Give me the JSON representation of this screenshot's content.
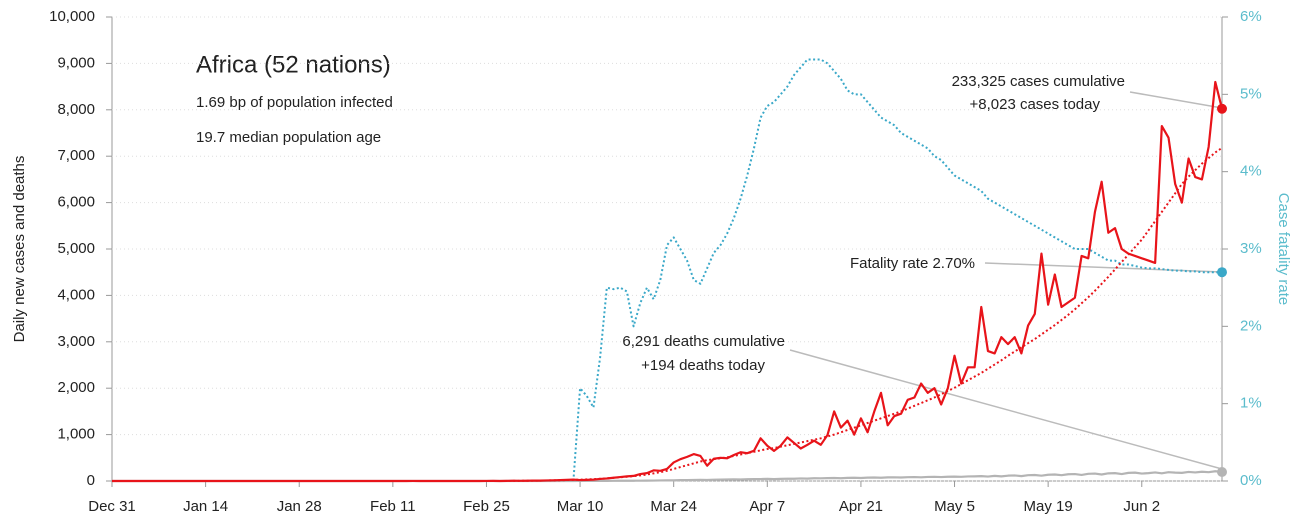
{
  "chart_data": {
    "type": "line",
    "title": "Africa (52 nations)",
    "subtitle": [
      "1.69 bp of population infected",
      "19.7 median population age"
    ],
    "ylabel": "Daily new cases and deaths",
    "y2label": "Case fatality rate",
    "annotations": [
      "233,325 cases cumulative",
      "+8,023 cases today",
      "Fatality rate 2.70%",
      "6,291 deaths cumulative",
      "+194 deaths today"
    ],
    "categories": [
      "Dec 31",
      null,
      null,
      null,
      null,
      null,
      null,
      null,
      null,
      null,
      null,
      null,
      null,
      null,
      "Jan 14",
      null,
      null,
      null,
      null,
      null,
      null,
      null,
      null,
      null,
      null,
      null,
      null,
      null,
      "Jan 28",
      null,
      null,
      null,
      null,
      null,
      null,
      null,
      null,
      null,
      null,
      null,
      null,
      null,
      "Feb 11",
      null,
      null,
      null,
      null,
      null,
      null,
      null,
      null,
      null,
      null,
      null,
      null,
      null,
      "Feb 25",
      null,
      null,
      null,
      null,
      null,
      null,
      null,
      null,
      null,
      null,
      null,
      null,
      null,
      "Mar 10",
      null,
      null,
      null,
      null,
      null,
      null,
      null,
      null,
      null,
      null,
      null,
      null,
      null,
      "Mar 24",
      null,
      null,
      null,
      null,
      null,
      null,
      null,
      null,
      null,
      null,
      null,
      null,
      null,
      "Apr 7",
      null,
      null,
      null,
      null,
      null,
      null,
      null,
      null,
      null,
      null,
      null,
      null,
      null,
      "Apr 21",
      null,
      null,
      null,
      null,
      null,
      null,
      null,
      null,
      null,
      null,
      null,
      null,
      null,
      "May 5",
      null,
      null,
      null,
      null,
      null,
      null,
      null,
      null,
      null,
      null,
      null,
      null,
      null,
      "May 19",
      null,
      null,
      null,
      null,
      null,
      null,
      null,
      null,
      null,
      null,
      null,
      null,
      null,
      "Jun 2",
      null,
      null,
      null,
      null,
      null,
      null,
      null,
      null,
      null,
      null,
      null,
      null
    ],
    "series": [
      {
        "color": "#3aa8c8",
        "dashed": true,
        "axis": "y2",
        "end_marker": true,
        "values": [
          null,
          null,
          null,
          null,
          null,
          null,
          null,
          null,
          null,
          null,
          null,
          null,
          null,
          null,
          null,
          null,
          null,
          null,
          null,
          null,
          null,
          null,
          null,
          null,
          null,
          null,
          null,
          null,
          null,
          null,
          null,
          null,
          null,
          null,
          null,
          null,
          null,
          null,
          null,
          null,
          null,
          null,
          null,
          null,
          null,
          null,
          null,
          null,
          null,
          null,
          null,
          null,
          null,
          null,
          null,
          null,
          null,
          null,
          null,
          null,
          null,
          null,
          null,
          null,
          null,
          null,
          null,
          null,
          null,
          0,
          1.2,
          1.1,
          0.95,
          1.6,
          2.5,
          2.48,
          2.5,
          2.45,
          2.0,
          2.3,
          2.5,
          2.35,
          2.6,
          3.05,
          3.15,
          3.0,
          2.85,
          2.6,
          2.55,
          2.75,
          2.95,
          3.05,
          3.2,
          3.4,
          3.65,
          3.95,
          4.3,
          4.7,
          4.85,
          4.9,
          5.0,
          5.1,
          5.25,
          5.35,
          5.45,
          5.45,
          5.45,
          5.4,
          5.3,
          5.2,
          5.05,
          5.0,
          5.0,
          4.9,
          4.8,
          4.7,
          4.65,
          4.6,
          4.5,
          4.45,
          4.4,
          4.35,
          4.3,
          4.2,
          4.15,
          4.05,
          3.95,
          3.9,
          3.85,
          3.8,
          3.75,
          3.65,
          3.6,
          3.55,
          3.5,
          3.45,
          3.4,
          3.35,
          3.3,
          3.25,
          3.2,
          3.15,
          3.1,
          3.05,
          3.0,
          3.0,
          3.0,
          2.95,
          2.9,
          2.85,
          2.85,
          2.8,
          2.8,
          2.78,
          2.76,
          2.75,
          2.75,
          2.74,
          2.73,
          2.72,
          2.72,
          2.71,
          2.71,
          2.7,
          2.7,
          2.7,
          2.7
        ]
      },
      {
        "color": "#b4b4b4",
        "dashed": false,
        "end_marker": true,
        "values": [
          0,
          0,
          0,
          0,
          0,
          0,
          0,
          0,
          0,
          0,
          0,
          0,
          0,
          0,
          0,
          0,
          0,
          0,
          0,
          0,
          0,
          0,
          0,
          0,
          0,
          0,
          0,
          0,
          0,
          0,
          0,
          0,
          0,
          0,
          0,
          0,
          0,
          0,
          0,
          0,
          0,
          0,
          0,
          0,
          0,
          0,
          0,
          0,
          0,
          0,
          0,
          0,
          0,
          0,
          0,
          0,
          0,
          0,
          0,
          0,
          0,
          0,
          0,
          0,
          0,
          0,
          0,
          0,
          0,
          0,
          1,
          2,
          2,
          3,
          3,
          4,
          5,
          5,
          6,
          7,
          8,
          10,
          12,
          15,
          14,
          18,
          20,
          22,
          25,
          23,
          28,
          30,
          32,
          35,
          33,
          38,
          40,
          42,
          45,
          40,
          45,
          50,
          48,
          55,
          52,
          60,
          58,
          62,
          65,
          60,
          68,
          70,
          65,
          72,
          75,
          70,
          78,
          80,
          75,
          82,
          85,
          80,
          88,
          90,
          85,
          92,
          95,
          90,
          98,
          100,
          105,
          95,
          110,
          100,
          115,
          120,
          105,
          125,
          130,
          115,
          135,
          140,
          125,
          145,
          150,
          130,
          155,
          160,
          140,
          165,
          170,
          150,
          175,
          180,
          160,
          170,
          185,
          165,
          190,
          180,
          175,
          195,
          185,
          200,
          190,
          210,
          194
        ]
      },
      {
        "color": "#e8141a",
        "dashed": true,
        "end_marker": false,
        "values": [
          null,
          null,
          null,
          null,
          null,
          null,
          null,
          null,
          null,
          null,
          null,
          null,
          null,
          null,
          null,
          null,
          null,
          null,
          null,
          null,
          null,
          null,
          null,
          null,
          null,
          null,
          null,
          null,
          null,
          null,
          null,
          null,
          null,
          null,
          null,
          null,
          null,
          null,
          null,
          null,
          null,
          null,
          null,
          null,
          null,
          null,
          null,
          null,
          null,
          null,
          null,
          null,
          null,
          null,
          null,
          null,
          null,
          null,
          null,
          null,
          2,
          4,
          5,
          7,
          9,
          11,
          14,
          17,
          20,
          24,
          28,
          34,
          40,
          48,
          57,
          68,
          80,
          92,
          105,
          120,
          140,
          165,
          190,
          220,
          260,
          300,
          340,
          380,
          420,
          450,
          470,
          490,
          510,
          540,
          570,
          600,
          630,
          660,
          690,
          710,
          740,
          770,
          800,
          830,
          860,
          890,
          920,
          960,
          1000,
          1050,
          1100,
          1150,
          1200,
          1250,
          1300,
          1350,
          1400,
          1450,
          1500,
          1560,
          1620,
          1680,
          1740,
          1800,
          1870,
          1940,
          2010,
          2090,
          2170,
          2250,
          2330,
          2420,
          2510,
          2600,
          2700,
          2790,
          2880,
          2970,
          3060,
          3160,
          3260,
          3360,
          3470,
          3580,
          3700,
          3830,
          3960,
          4100,
          4250,
          4400,
          4560,
          4720,
          4880,
          5040,
          5200,
          5400,
          5600,
          5800,
          6000,
          6200,
          6400,
          6560,
          6700,
          6840,
          6960,
          7080,
          7180
        ]
      },
      {
        "color": "#e8141a",
        "dashed": false,
        "end_marker": true,
        "values": [
          0,
          0,
          0,
          0,
          0,
          0,
          0,
          0,
          0,
          0,
          0,
          0,
          0,
          0,
          0,
          0,
          0,
          0,
          0,
          0,
          0,
          0,
          0,
          0,
          0,
          0,
          0,
          0,
          0,
          0,
          0,
          0,
          0,
          0,
          0,
          0,
          0,
          0,
          0,
          0,
          0,
          0,
          0,
          0,
          0,
          1,
          0,
          0,
          0,
          0,
          0,
          0,
          0,
          0,
          0,
          0,
          1,
          2,
          0,
          3,
          5,
          4,
          6,
          10,
          8,
          12,
          15,
          20,
          25,
          30,
          20,
          25,
          30,
          45,
          55,
          70,
          85,
          100,
          110,
          150,
          170,
          230,
          220,
          260,
          400,
          470,
          520,
          580,
          540,
          330,
          480,
          500,
          490,
          560,
          620,
          600,
          650,
          920,
          760,
          650,
          760,
          940,
          820,
          700,
          780,
          870,
          780,
          990,
          1500,
          1150,
          1300,
          1000,
          1350,
          1050,
          1500,
          1900,
          1200,
          1400,
          1450,
          1750,
          1800,
          2100,
          1900,
          2000,
          1650,
          2000,
          2700,
          2100,
          2450,
          2450,
          3750,
          2800,
          2750,
          3100,
          2950,
          3100,
          2750,
          3350,
          3600,
          4900,
          3800,
          4450,
          3750,
          3850,
          3950,
          4850,
          4800,
          5800,
          6450,
          5350,
          5450,
          5000,
          4900,
          4850,
          4800,
          4750,
          4700,
          7650,
          7400,
          6400,
          6000,
          6950,
          6550,
          6500,
          7200,
          8600,
          8023
        ]
      }
    ],
    "ylim": [
      0,
      10000
    ],
    "yticks": [
      0,
      {
        "value": 1000,
        "label": "1,000"
      },
      {
        "value": 2000,
        "label": "2,000"
      },
      {
        "value": 3000,
        "label": "3,000"
      },
      {
        "value": 4000,
        "label": "4,000"
      },
      {
        "value": 5000,
        "label": "5,000"
      },
      {
        "value": 6000,
        "label": "6,000"
      },
      {
        "value": 7000,
        "label": "7,000"
      },
      {
        "value": 8000,
        "label": "8,000"
      },
      {
        "value": 9000,
        "label": "9,000"
      },
      {
        "value": 10000,
        "label": "10,000"
      }
    ],
    "y2lim": [
      0,
      6
    ],
    "y2ticks": [
      {
        "value": 0,
        "label": "0%"
      },
      {
        "value": 1,
        "label": "1%"
      },
      {
        "value": 2,
        "label": "2%"
      },
      {
        "value": 3,
        "label": "3%"
      },
      {
        "value": 4,
        "label": "4%"
      },
      {
        "value": 5,
        "label": "5%"
      },
      {
        "value": 6,
        "label": "6%"
      }
    ],
    "y2color": "#5bbccc",
    "grid": true
  }
}
